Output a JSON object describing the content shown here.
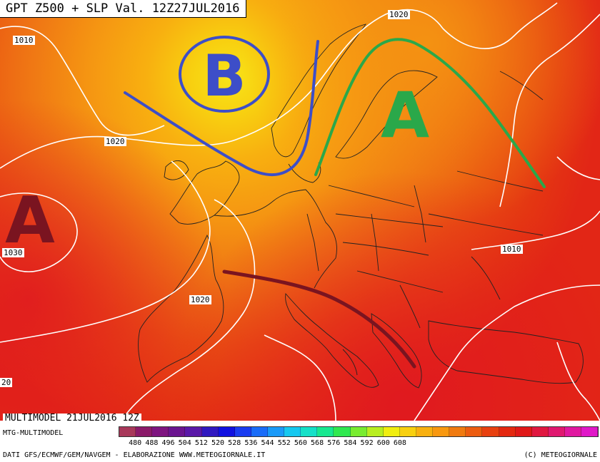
{
  "title": "GPT Z500 + SLP Val. 12Z27JUL2016",
  "isobars": [
    {
      "id": "1010-nw",
      "label": "1010"
    },
    {
      "id": "1020-n",
      "label": "1020"
    },
    {
      "id": "1020-atl",
      "label": "1020"
    },
    {
      "id": "1030",
      "label": "1030"
    },
    {
      "id": "1020-med",
      "label": "1020"
    },
    {
      "id": "1010-e",
      "label": "1010"
    },
    {
      "id": "20-edge",
      "label": "20"
    }
  ],
  "pressure_centers": [
    {
      "id": "low-b",
      "letter": "B",
      "color": "#3d4ec8"
    },
    {
      "id": "high-a-north",
      "letter": "A",
      "color": "#2aa84a"
    },
    {
      "id": "high-a-atlantic",
      "letter": "A",
      "color": "#7a1420"
    }
  ],
  "colorbar": {
    "ticks": [
      "480",
      "488",
      "496",
      "504",
      "512",
      "520",
      "528",
      "536",
      "544",
      "552",
      "560",
      "568",
      "576",
      "584",
      "592",
      "600",
      "608"
    ],
    "colors": [
      "#a8385a",
      "#8b1a6a",
      "#7e1480",
      "#6a148f",
      "#5a18a8",
      "#3018c0",
      "#1010e0",
      "#1a3cf0",
      "#1a6cf8",
      "#1a9af8",
      "#16c8f0",
      "#16e0c8",
      "#18e890",
      "#30e850",
      "#78ec30",
      "#b8ee20",
      "#f0ee10",
      "#f8d010",
      "#f8b010",
      "#f89810",
      "#f07a10",
      "#ec5c10",
      "#e84010",
      "#e42810",
      "#e01818",
      "#e01840",
      "#e01870",
      "#e018a0",
      "#e018c8"
    ]
  },
  "footer": {
    "run": "MULTIMODEL 21JUL2016 12Z",
    "model": "MTG-MULTIMODEL",
    "credits": "DATI GFS/ECMWF/GEM/NAVGEM - ELABORAZIONE WWW.METEOGIORNALE.IT",
    "copyright": "(C) METEOGIORNALE"
  }
}
